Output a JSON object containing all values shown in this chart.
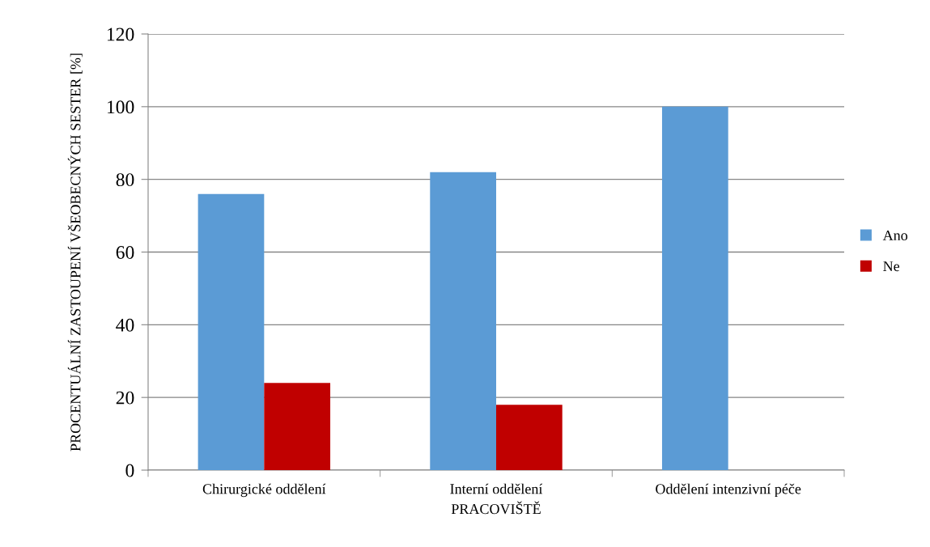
{
  "chart_data": {
    "type": "bar",
    "xlabel": "PRACOVIŠTĚ",
    "ylabel": "PROCENTUÁLNÍ ZASTOUPENÍ VŠEOBECNÝCH SESTER [%]",
    "categories": [
      "Chirurgické oddělení",
      "Interní oddělení",
      "Oddělení intenzivní péče"
    ],
    "series": [
      {
        "name": "Ano",
        "color": "#5b9bd5",
        "values": [
          76,
          82,
          100
        ]
      },
      {
        "name": "Ne",
        "color": "#c00000",
        "values": [
          24,
          18,
          0
        ]
      }
    ],
    "ylim": [
      0,
      120
    ],
    "yticks": [
      0,
      20,
      40,
      60,
      80,
      100,
      120
    ],
    "grid": "y",
    "legend": "right"
  }
}
